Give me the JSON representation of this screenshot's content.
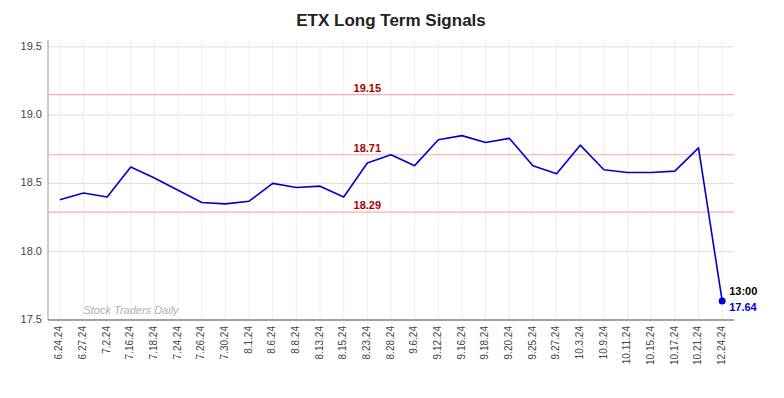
{
  "chart_data": {
    "type": "line",
    "title": "ETX Long Term Signals",
    "categories": [
      "6.24.24",
      "6.27.24",
      "7.2.24",
      "7.16.24",
      "7.18.24",
      "7.24.24",
      "7.26.24",
      "7.30.24",
      "8.1.24",
      "8.6.24",
      "8.8.24",
      "8.13.24",
      "8.15.24",
      "8.23.24",
      "8.28.24",
      "9.6.24",
      "9.12.24",
      "9.16.24",
      "9.18.24",
      "9.20.24",
      "9.25.24",
      "9.27.24",
      "10.3.24",
      "10.9.24",
      "10.11.24",
      "10.15.24",
      "10.17.24",
      "10.21.24",
      "12.24.24"
    ],
    "values": [
      18.38,
      18.43,
      18.4,
      18.62,
      18.54,
      18.45,
      18.36,
      18.35,
      18.37,
      18.5,
      18.47,
      18.48,
      18.4,
      18.65,
      18.71,
      18.63,
      18.82,
      18.85,
      18.8,
      18.83,
      18.63,
      18.57,
      18.78,
      18.6,
      18.58,
      18.58,
      18.59,
      18.76,
      17.64
    ],
    "color": "#0000cc",
    "ylim": [
      17.5,
      19.55
    ],
    "yticks": [
      17.5,
      {
        "value": 18.0,
        "label": "18.0"
      },
      18.5,
      {
        "value": 19.0,
        "label": "19.0"
      },
      19.5
    ],
    "grid": true,
    "reference_lines": {
      "color": "#ffaaaa",
      "label_color": "#aa0000",
      "lines": [
        {
          "value": 19.15,
          "label": "19.15"
        },
        {
          "value": 18.71,
          "label": "18.71"
        },
        {
          "value": 18.29,
          "label": "18.29"
        }
      ]
    },
    "annotations": [
      {
        "text": "13:00"
      },
      {
        "text": "17.64",
        "value": 17.64,
        "color": "#0000cc"
      }
    ],
    "watermark": "Stock Traders Daily"
  }
}
